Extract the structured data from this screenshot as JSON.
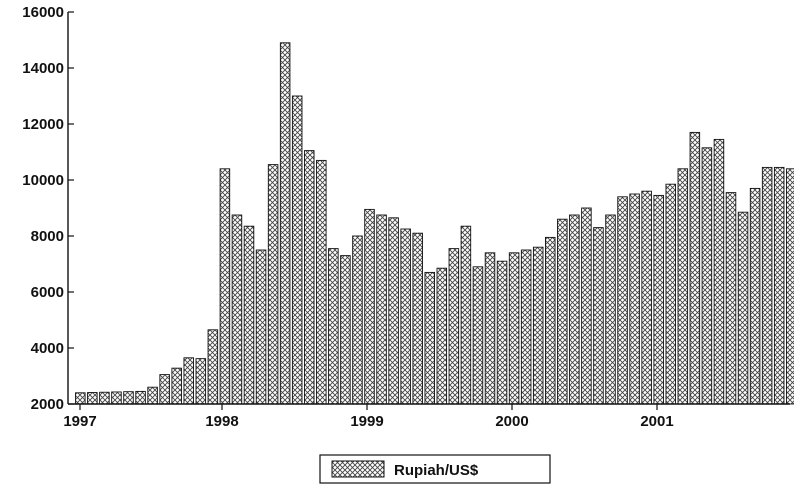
{
  "chart_data": {
    "type": "bar",
    "x_start": "1997-01",
    "frequency": "monthly",
    "x_tick_labels": [
      "1997",
      "1998",
      "1999",
      "2000",
      "2001"
    ],
    "ylim": [
      2000,
      16000
    ],
    "y_ticks": [
      2000,
      4000,
      6000,
      8000,
      10000,
      12000,
      14000,
      16000
    ],
    "legend_position": "bottom-center",
    "grid": false,
    "series": [
      {
        "name": "Rupiah/US$",
        "pattern": "crosshatch",
        "values": [
          2400,
          2410,
          2420,
          2430,
          2440,
          2450,
          2600,
          3050,
          3280,
          3650,
          3620,
          4650,
          10400,
          8750,
          8350,
          7500,
          10550,
          14900,
          13000,
          11050,
          10700,
          7550,
          7300,
          8000,
          8950,
          8750,
          8650,
          8250,
          8100,
          6700,
          6850,
          7550,
          8350,
          6900,
          7400,
          7100,
          7400,
          7500,
          7600,
          7950,
          8600,
          8750,
          9000,
          8300,
          8750,
          9400,
          9500,
          9600,
          9450,
          9850,
          10400,
          11700,
          11150,
          11450,
          9550,
          8850,
          9700,
          10450,
          10450,
          10400
        ]
      }
    ]
  }
}
